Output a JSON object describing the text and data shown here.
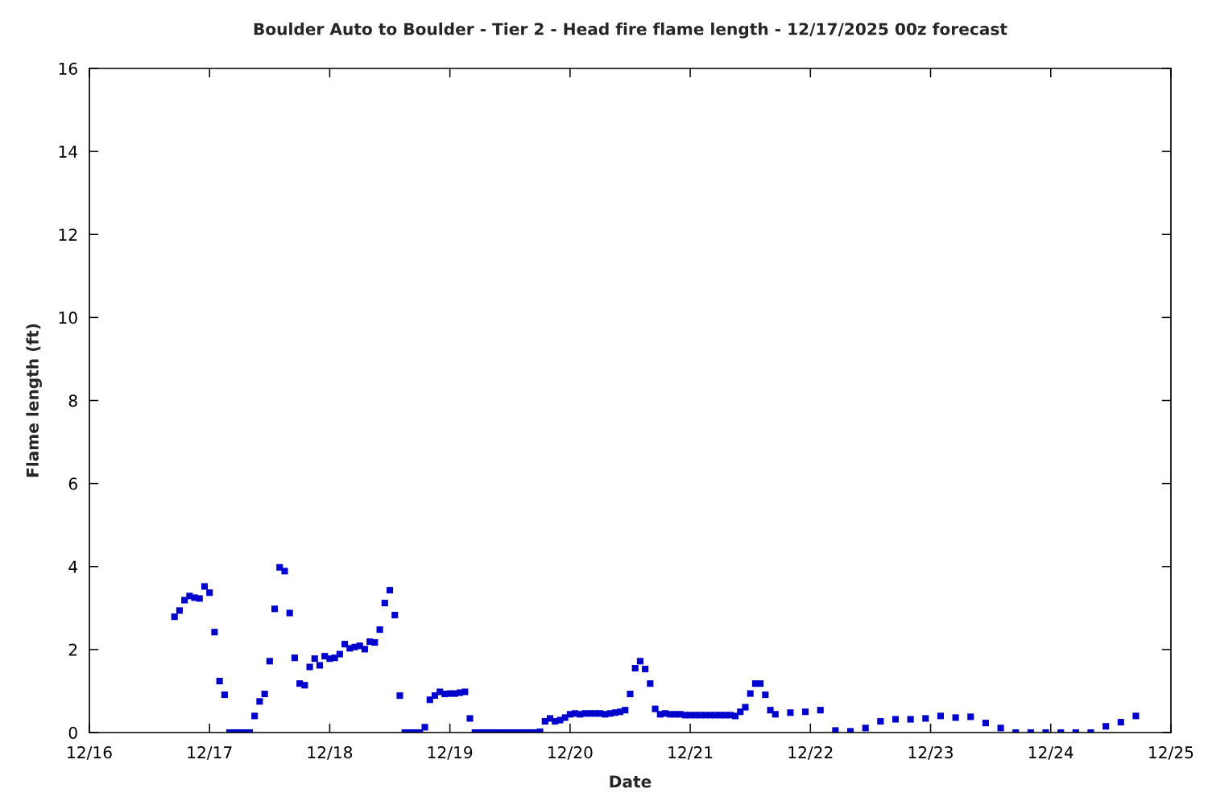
{
  "chart_data": {
    "type": "scatter",
    "title": "Boulder Auto to Boulder - Tier 2 - Head fire flame length - 12/17/2025 00z forecast",
    "xlabel": "Date",
    "ylabel": "Flame length (ft)",
    "x": [
      "2025-12-16T17:00",
      "2025-12-16T18:00",
      "2025-12-16T19:00",
      "2025-12-16T20:00",
      "2025-12-16T21:00",
      "2025-12-16T22:00",
      "2025-12-16T23:00",
      "2025-12-17T00:00",
      "2025-12-17T01:00",
      "2025-12-17T02:00",
      "2025-12-17T03:00",
      "2025-12-17T04:00",
      "2025-12-17T05:00",
      "2025-12-17T06:00",
      "2025-12-17T07:00",
      "2025-12-17T08:00",
      "2025-12-17T09:00",
      "2025-12-17T10:00",
      "2025-12-17T11:00",
      "2025-12-17T12:00",
      "2025-12-17T13:00",
      "2025-12-17T14:00",
      "2025-12-17T15:00",
      "2025-12-17T16:00",
      "2025-12-17T17:00",
      "2025-12-17T18:00",
      "2025-12-17T19:00",
      "2025-12-17T20:00",
      "2025-12-17T21:00",
      "2025-12-17T22:00",
      "2025-12-17T23:00",
      "2025-12-18T00:00",
      "2025-12-18T01:00",
      "2025-12-18T02:00",
      "2025-12-18T03:00",
      "2025-12-18T04:00",
      "2025-12-18T05:00",
      "2025-12-18T06:00",
      "2025-12-18T07:00",
      "2025-12-18T08:00",
      "2025-12-18T09:00",
      "2025-12-18T10:00",
      "2025-12-18T11:00",
      "2025-12-18T12:00",
      "2025-12-18T13:00",
      "2025-12-18T14:00",
      "2025-12-18T15:00",
      "2025-12-18T16:00",
      "2025-12-18T17:00",
      "2025-12-18T18:00",
      "2025-12-18T19:00",
      "2025-12-18T20:00",
      "2025-12-18T21:00",
      "2025-12-18T22:00",
      "2025-12-18T23:00",
      "2025-12-19T00:00",
      "2025-12-19T01:00",
      "2025-12-19T02:00",
      "2025-12-19T03:00",
      "2025-12-19T04:00",
      "2025-12-19T05:00",
      "2025-12-19T06:00",
      "2025-12-19T07:00",
      "2025-12-19T08:00",
      "2025-12-19T09:00",
      "2025-12-19T10:00",
      "2025-12-19T11:00",
      "2025-12-19T12:00",
      "2025-12-19T13:00",
      "2025-12-19T14:00",
      "2025-12-19T15:00",
      "2025-12-19T16:00",
      "2025-12-19T17:00",
      "2025-12-19T18:00",
      "2025-12-19T19:00",
      "2025-12-19T20:00",
      "2025-12-19T21:00",
      "2025-12-19T22:00",
      "2025-12-19T23:00",
      "2025-12-20T00:00",
      "2025-12-20T01:00",
      "2025-12-20T02:00",
      "2025-12-20T03:00",
      "2025-12-20T04:00",
      "2025-12-20T05:00",
      "2025-12-20T06:00",
      "2025-12-20T07:00",
      "2025-12-20T08:00",
      "2025-12-20T09:00",
      "2025-12-20T10:00",
      "2025-12-20T11:00",
      "2025-12-20T12:00",
      "2025-12-20T13:00",
      "2025-12-20T14:00",
      "2025-12-20T15:00",
      "2025-12-20T16:00",
      "2025-12-20T17:00",
      "2025-12-20T18:00",
      "2025-12-20T19:00",
      "2025-12-20T20:00",
      "2025-12-20T21:00",
      "2025-12-20T22:00",
      "2025-12-20T23:00",
      "2025-12-21T00:00",
      "2025-12-21T01:00",
      "2025-12-21T02:00",
      "2025-12-21T03:00",
      "2025-12-21T04:00",
      "2025-12-21T05:00",
      "2025-12-21T06:00",
      "2025-12-21T07:00",
      "2025-12-21T08:00",
      "2025-12-21T09:00",
      "2025-12-21T10:00",
      "2025-12-21T11:00",
      "2025-12-21T12:00",
      "2025-12-21T13:00",
      "2025-12-21T14:00",
      "2025-12-21T15:00",
      "2025-12-21T16:00",
      "2025-12-21T17:00",
      "2025-12-21T20:00",
      "2025-12-21T23:00",
      "2025-12-22T02:00",
      "2025-12-22T05:00",
      "2025-12-22T08:00",
      "2025-12-22T11:00",
      "2025-12-22T14:00",
      "2025-12-22T17:00",
      "2025-12-22T20:00",
      "2025-12-22T23:00",
      "2025-12-23T02:00",
      "2025-12-23T05:00",
      "2025-12-23T08:00",
      "2025-12-23T11:00",
      "2025-12-23T14:00",
      "2025-12-23T17:00",
      "2025-12-23T20:00",
      "2025-12-23T23:00",
      "2025-12-24T02:00",
      "2025-12-24T05:00",
      "2025-12-24T08:00",
      "2025-12-24T11:00",
      "2025-12-24T14:00",
      "2025-12-24T17:00"
    ],
    "series": [
      {
        "color": "#0000cc",
        "values": [
          2.79,
          2.94,
          3.19,
          3.29,
          3.25,
          3.23,
          3.52,
          3.37,
          2.42,
          1.24,
          0.91,
          0,
          0,
          0,
          0,
          0,
          0.4,
          0.75,
          0.93,
          1.72,
          2.98,
          3.98,
          3.89,
          2.88,
          1.8,
          1.18,
          1.14,
          1.58,
          1.78,
          1.62,
          1.84,
          1.78,
          1.8,
          1.89,
          2.13,
          2.03,
          2.06,
          2.09,
          2.01,
          2.19,
          2.17,
          2.48,
          3.12,
          3.43,
          2.83,
          0.89,
          0,
          0,
          0,
          0,
          0.13,
          0.79,
          0.89,
          0.98,
          0.93,
          0.94,
          0.94,
          0.96,
          0.98,
          0.34,
          0,
          0,
          0,
          0,
          0,
          0,
          0,
          0,
          0,
          0,
          0,
          0,
          0,
          0.02,
          0.27,
          0.34,
          0.27,
          0.3,
          0.36,
          0.44,
          0.46,
          0.44,
          0.46,
          0.46,
          0.46,
          0.46,
          0.44,
          0.46,
          0.48,
          0.5,
          0.54,
          0.93,
          1.55,
          1.72,
          1.53,
          1.18,
          0.57,
          0.44,
          0.46,
          0.44,
          0.44,
          0.44,
          0.42,
          0.42,
          0.42,
          0.42,
          0.42,
          0.42,
          0.42,
          0.42,
          0.42,
          0.42,
          0.4,
          0.5,
          0.61,
          0.94,
          1.18,
          1.18,
          0.91,
          0.54,
          0.44,
          0.48,
          0.5,
          0.54,
          0.05,
          0.03,
          0.11,
          0.27,
          0.32,
          0.32,
          0.34,
          0.4,
          0.36,
          0.38,
          0.23,
          0.11,
          0,
          0,
          0,
          0,
          0,
          0,
          0.15,
          0.25,
          0.4
        ]
      }
    ],
    "xlim": [
      "2025-12-16",
      "2025-12-25"
    ],
    "xticks": [
      {
        "value": "2025-12-16",
        "label": "12/16"
      },
      {
        "value": "2025-12-17",
        "label": "12/17"
      },
      {
        "value": "2025-12-18",
        "label": "12/18"
      },
      {
        "value": "2025-12-19",
        "label": "12/19"
      },
      {
        "value": "2025-12-20",
        "label": "12/20"
      },
      {
        "value": "2025-12-21",
        "label": "12/21"
      },
      {
        "value": "2025-12-22",
        "label": "12/22"
      },
      {
        "value": "2025-12-23",
        "label": "12/23"
      },
      {
        "value": "2025-12-24",
        "label": "12/24"
      },
      {
        "value": "2025-12-25",
        "label": "12/25"
      }
    ],
    "ylim": [
      0,
      16
    ],
    "yticks": [
      0,
      2,
      4,
      6,
      8,
      10,
      12,
      14,
      16
    ],
    "marker": "square",
    "grid": false
  }
}
